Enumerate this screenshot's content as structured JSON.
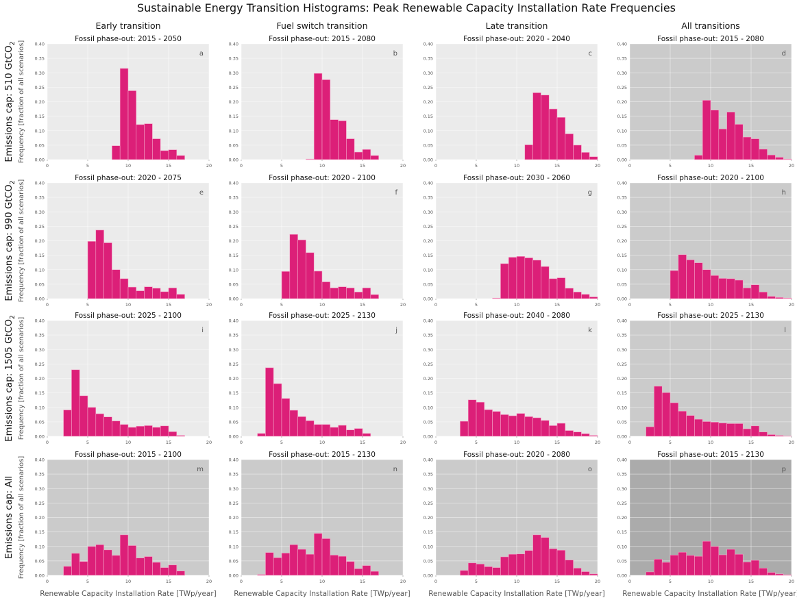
{
  "title": "Sustainable Energy Transition Histograms: Peak Renewable Capacity Installation Rate Frequencies",
  "column_titles": [
    "Early transition",
    "Fuel switch transition",
    "Late transition",
    "All transitions"
  ],
  "row_labels": [
    {
      "main": "Emissions cap: 510 GtCO",
      "sub": "2"
    },
    {
      "main": "Emissions cap: 990 GtCO",
      "sub": "2"
    },
    {
      "main": "Emissions cap: 1505 GtCO",
      "sub": "2"
    },
    {
      "main": "Emissions cap: All",
      "sub": ""
    }
  ],
  "ylabel": "Frequency [fraction of all scenarios]",
  "xlabel": "Renewable Capacity Installation Rate [TWp/year]",
  "colors": {
    "bar": "#dc1f78",
    "bar_edge": "#f4a6c9",
    "bg_light": "#ebebeb",
    "bg_mid": "#cbcbcb",
    "bg_dark": "#ababab"
  },
  "chart_data": {
    "type": "bar",
    "bin_width": 1,
    "xlim": [
      0,
      20
    ],
    "ylim": [
      0,
      0.4
    ],
    "xticks": [
      0,
      5,
      10,
      15,
      20
    ],
    "yticks": [
      "0.00",
      "0.05",
      "0.10",
      "0.15",
      "0.20",
      "0.25",
      "0.30",
      "0.35",
      "0.40"
    ],
    "xtick_labels": [
      "0",
      "5",
      "10",
      "15",
      "20"
    ],
    "panels": [
      {
        "letter": "a",
        "subtitle": "Fossil phase-out: 2015 - 2050",
        "background": "light",
        "bin_start": 8,
        "values": [
          0.048,
          0.315,
          0.238,
          0.121,
          0.124,
          0.072,
          0.031,
          0.034,
          0.014
        ]
      },
      {
        "letter": "b",
        "subtitle": "Fossil phase-out: 2015 - 2080",
        "background": "light",
        "bin_start": 8,
        "values": [
          0.002,
          0.298,
          0.276,
          0.138,
          0.134,
          0.072,
          0.026,
          0.035,
          0.014
        ]
      },
      {
        "letter": "c",
        "subtitle": "Fossil phase-out: 2020 - 2040",
        "background": "light",
        "bin_start": 11,
        "values": [
          0.051,
          0.231,
          0.223,
          0.175,
          0.146,
          0.089,
          0.05,
          0.025,
          0.01
        ]
      },
      {
        "letter": "d",
        "subtitle": "Fossil phase-out: 2015 - 2080",
        "background": "mid",
        "bin_start": 8,
        "values": [
          0.015,
          0.205,
          0.171,
          0.106,
          0.164,
          0.122,
          0.078,
          0.072,
          0.036,
          0.016,
          0.008,
          0.002
        ]
      },
      {
        "letter": "e",
        "subtitle": "Fossil phase-out: 2020 - 2075",
        "background": "light",
        "bin_start": 5,
        "values": [
          0.198,
          0.237,
          0.193,
          0.1,
          0.069,
          0.04,
          0.027,
          0.041,
          0.036,
          0.024,
          0.037,
          0.015
        ]
      },
      {
        "letter": "f",
        "subtitle": "Fossil phase-out: 2020 - 2100",
        "background": "light",
        "bin_start": 5,
        "values": [
          0.094,
          0.222,
          0.203,
          0.159,
          0.095,
          0.058,
          0.037,
          0.041,
          0.037,
          0.023,
          0.037,
          0.014
        ]
      },
      {
        "letter": "g",
        "subtitle": "Fossil phase-out: 2030 - 2060",
        "background": "light",
        "bin_start": 7,
        "values": [
          0.002,
          0.121,
          0.143,
          0.146,
          0.141,
          0.133,
          0.111,
          0.069,
          0.072,
          0.036,
          0.023,
          0.015,
          0.006
        ]
      },
      {
        "letter": "h",
        "subtitle": "Fossil phase-out: 2020 - 2100",
        "background": "mid",
        "bin_start": 5,
        "values": [
          0.097,
          0.152,
          0.134,
          0.124,
          0.1,
          0.08,
          0.07,
          0.069,
          0.064,
          0.037,
          0.048,
          0.023,
          0.008,
          0.004,
          0.002
        ]
      },
      {
        "letter": "i",
        "subtitle": "Fossil phase-out: 2025 - 2100",
        "background": "light",
        "bin_start": 2,
        "values": [
          0.091,
          0.23,
          0.14,
          0.1,
          0.078,
          0.067,
          0.053,
          0.041,
          0.031,
          0.035,
          0.037,
          0.031,
          0.036,
          0.016,
          0.003
        ]
      },
      {
        "letter": "j",
        "subtitle": "Fossil phase-out: 2025 - 2130",
        "background": "light",
        "bin_start": 2,
        "values": [
          0.01,
          0.237,
          0.182,
          0.131,
          0.09,
          0.068,
          0.054,
          0.041,
          0.041,
          0.031,
          0.038,
          0.022,
          0.027,
          0.01
        ]
      },
      {
        "letter": "k",
        "subtitle": "Fossil phase-out: 2040 - 2080",
        "background": "light",
        "bin_start": 3,
        "values": [
          0.052,
          0.126,
          0.118,
          0.092,
          0.086,
          0.075,
          0.071,
          0.079,
          0.068,
          0.064,
          0.055,
          0.037,
          0.045,
          0.02,
          0.015,
          0.009,
          0.003
        ]
      },
      {
        "letter": "l",
        "subtitle": "Fossil phase-out: 2025 - 2130",
        "background": "mid",
        "bin_start": 2,
        "values": [
          0.033,
          0.173,
          0.151,
          0.116,
          0.087,
          0.072,
          0.059,
          0.051,
          0.049,
          0.046,
          0.044,
          0.044,
          0.026,
          0.036,
          0.015,
          0.006,
          0.003,
          0.001
        ]
      },
      {
        "letter": "m",
        "subtitle": "Fossil phase-out: 2015 - 2100",
        "background": "mid",
        "bin_start": 2,
        "values": [
          0.031,
          0.076,
          0.048,
          0.1,
          0.106,
          0.088,
          0.069,
          0.14,
          0.103,
          0.06,
          0.065,
          0.045,
          0.027,
          0.036,
          0.015
        ]
      },
      {
        "letter": "n",
        "subtitle": "Fossil phase-out: 2015 - 2130",
        "background": "mid",
        "bin_start": 2,
        "values": [
          0.003,
          0.079,
          0.061,
          0.077,
          0.106,
          0.09,
          0.073,
          0.145,
          0.127,
          0.07,
          0.066,
          0.048,
          0.023,
          0.034,
          0.014
        ]
      },
      {
        "letter": "o",
        "subtitle": "Fossil phase-out: 2020 - 2080",
        "background": "mid",
        "bin_start": 3,
        "values": [
          0.017,
          0.043,
          0.039,
          0.03,
          0.027,
          0.064,
          0.073,
          0.074,
          0.086,
          0.14,
          0.131,
          0.092,
          0.087,
          0.053,
          0.025,
          0.013,
          0.005
        ]
      },
      {
        "letter": "p",
        "subtitle": "Fossil phase-out: 2015 - 2130",
        "background": "dark",
        "bin_start": 2,
        "values": [
          0.012,
          0.056,
          0.045,
          0.07,
          0.08,
          0.069,
          0.066,
          0.118,
          0.1,
          0.071,
          0.09,
          0.073,
          0.046,
          0.052,
          0.025,
          0.01,
          0.005,
          0.002
        ]
      }
    ]
  }
}
